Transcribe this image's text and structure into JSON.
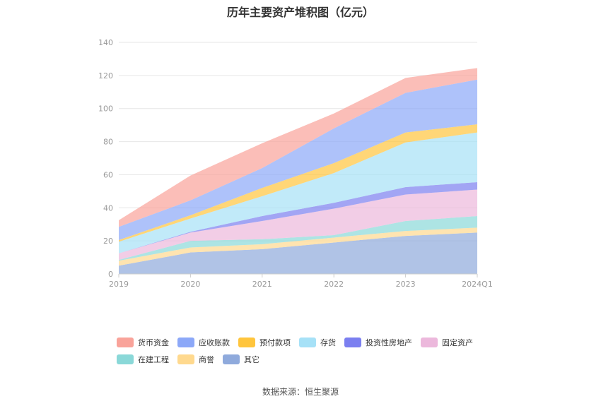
{
  "title": "历年主要资产堆积图（亿元）",
  "source": "数据来源：恒生聚源",
  "chart_data": {
    "type": "area",
    "stacked": true,
    "title": "历年主要资产堆积图（亿元）",
    "categories": [
      "2019",
      "2020",
      "2021",
      "2022",
      "2023",
      "2024Q1"
    ],
    "ylim": [
      0,
      140
    ],
    "yticks": [
      0,
      20,
      40,
      60,
      80,
      100,
      120,
      140
    ],
    "grid": true,
    "legend_position": "bottom",
    "series": [
      {
        "name": "其它",
        "color": "#8faadc",
        "values": [
          5,
          13,
          15,
          19,
          23,
          25
        ]
      },
      {
        "name": "商誉",
        "color": "#ffd98e",
        "values": [
          3,
          3,
          3,
          3,
          3,
          3
        ]
      },
      {
        "name": "在建工程",
        "color": "#8ad8d8",
        "values": [
          0.5,
          4,
          3,
          1.5,
          6,
          7
        ]
      },
      {
        "name": "固定资产",
        "color": "#ecb8dc",
        "values": [
          4,
          5,
          11,
          16,
          16,
          16
        ]
      },
      {
        "name": "投资性房地产",
        "color": "#7b7ff0",
        "values": [
          0,
          0.5,
          3,
          3.5,
          4.5,
          4.5
        ]
      },
      {
        "name": "存货",
        "color": "#a6e1f7",
        "values": [
          7,
          8,
          12,
          18,
          27,
          30
        ]
      },
      {
        "name": "预付款项",
        "color": "#ffc53d",
        "values": [
          1,
          2,
          5,
          6,
          6,
          5
        ]
      },
      {
        "name": "应收账款",
        "color": "#8ca8f8",
        "values": [
          8,
          9,
          12,
          21,
          24,
          27
        ]
      },
      {
        "name": "货币资金",
        "color": "#f9a39a",
        "values": [
          4,
          15,
          15,
          9,
          9,
          7
        ]
      }
    ],
    "legend_order": [
      "货币资金",
      "应收账款",
      "预付款项",
      "存货",
      "投资性房地产",
      "固定资产",
      "在建工程",
      "商誉",
      "其它"
    ]
  }
}
